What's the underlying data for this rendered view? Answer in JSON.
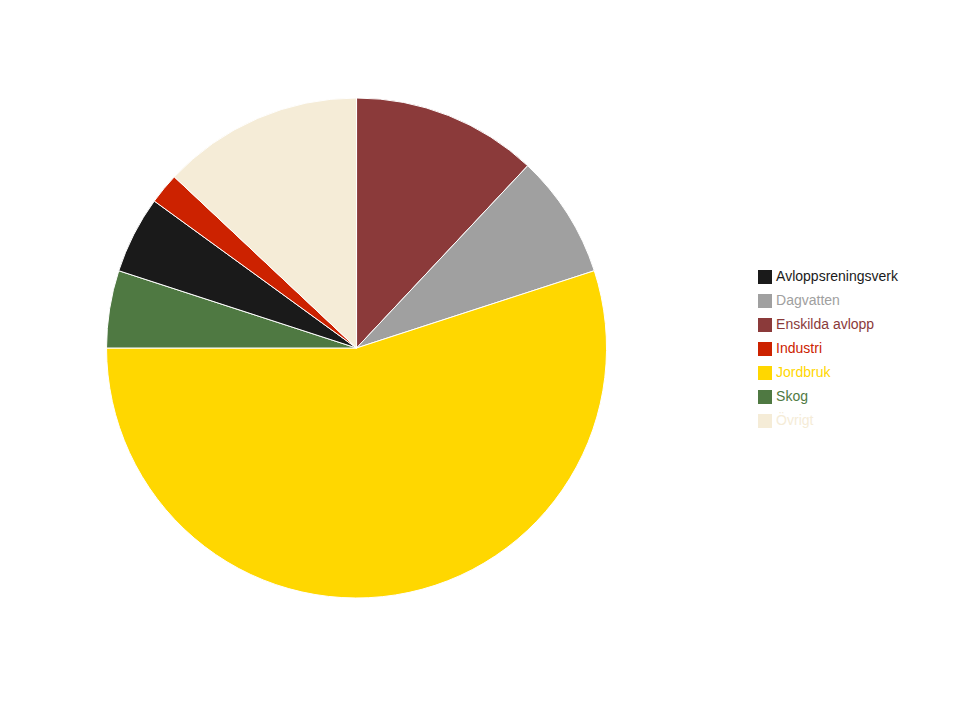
{
  "chart_data": {
    "type": "pie",
    "categories": [
      "Enskilda avlopp",
      "Dagvatten",
      "Jordbruk",
      "Skog",
      "Avloppsreningsverk",
      "Industri",
      "Övrigt"
    ],
    "values": [
      12,
      8,
      55,
      5,
      5,
      2,
      13
    ],
    "colors": [
      "#8B3A3A",
      "#A0A0A0",
      "#FFD700",
      "#4F7942",
      "#1A1A1A",
      "#CC2200",
      "#F5ECD7"
    ],
    "legend": "right"
  }
}
